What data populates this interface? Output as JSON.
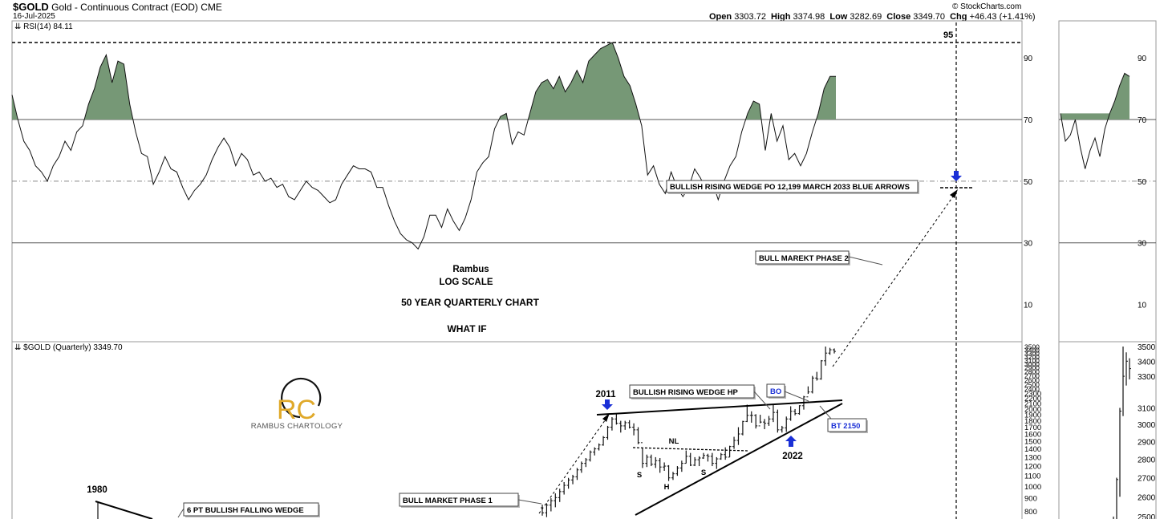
{
  "header": {
    "symbol": "$GOLD",
    "name": "Gold - Continuous Contract (EOD)",
    "exchange": "CME",
    "date": "16-Jul-2025",
    "open_label": "Open",
    "open": "3303.72",
    "high_label": "High",
    "high": "3374.98",
    "low_label": "Low",
    "low": "3282.69",
    "close_label": "Close",
    "close": "3349.70",
    "chg_label": "Chg",
    "chg": "+46.43 (+1.41%)",
    "source": "© StockCharts.com"
  },
  "chart_data": [
    {
      "type": "line",
      "panel": "rsi",
      "indicator_label": "RSI(14) 84.11",
      "ylim": [
        0,
        100
      ],
      "ticks": [
        10,
        30,
        50,
        70,
        90
      ],
      "reference_lines": {
        "overbought": 70,
        "midline": 50,
        "oversold": 30,
        "extreme": 95
      },
      "extreme_label": "95",
      "fill_above": 70,
      "fill_color": "#769876",
      "values": [
        78,
        70,
        63,
        60,
        55,
        53,
        50,
        55,
        58,
        63,
        60,
        66,
        68,
        75,
        80,
        87,
        91,
        82,
        89,
        88,
        75,
        66,
        59,
        58,
        49,
        53,
        58,
        54,
        53,
        48,
        44,
        47,
        49,
        52,
        57,
        61,
        64,
        61,
        55,
        59,
        57,
        52,
        53,
        50,
        51,
        48,
        49,
        45,
        44,
        47,
        50,
        48,
        47,
        45,
        43,
        44,
        49,
        52,
        55,
        54,
        54,
        53,
        48,
        48,
        42,
        37,
        33,
        31,
        30,
        28,
        32,
        39,
        39,
        35,
        41,
        37,
        34,
        38,
        44,
        53,
        56,
        58,
        67,
        71,
        72,
        62,
        66,
        65,
        72,
        79,
        82,
        83,
        80,
        84,
        79,
        82,
        86,
        82,
        89,
        91,
        93,
        94,
        95,
        90,
        84,
        81,
        75,
        68,
        52,
        55,
        49,
        46,
        53,
        48,
        45,
        48,
        54,
        51,
        47,
        50,
        44,
        50,
        55,
        58,
        66,
        72,
        76,
        75,
        60,
        72,
        63,
        68,
        57,
        59,
        55,
        59,
        66,
        72,
        80,
        84,
        84
      ],
      "inset_values": [
        72,
        63,
        65,
        70,
        61,
        54,
        60,
        64,
        58,
        67,
        72,
        76,
        81,
        85,
        84
      ]
    },
    {
      "type": "line",
      "panel": "price",
      "scale": "log",
      "series_label": "$GOLD (Quarterly) 3349.70",
      "ylim": [
        700,
        3550
      ],
      "ticks": [
        3500,
        3400,
        3300,
        3200,
        3100,
        3000,
        2900,
        2800,
        2700,
        2600,
        2500,
        2400,
        2300,
        2200,
        2100,
        2000,
        1900,
        1800,
        1700,
        1600,
        1500,
        1400,
        1300,
        1200,
        1100,
        1000,
        900,
        800
      ],
      "inset_ticks": [
        3500,
        3400,
        3300,
        3100,
        3000,
        2900,
        2800,
        2700,
        2600,
        2500
      ],
      "bars": [
        [
          826,
          850,
          770,
          790
        ],
        [
          790,
          860,
          760,
          846
        ],
        [
          846,
          900,
          800,
          880
        ],
        [
          880,
          940,
          830,
          905
        ],
        [
          905,
          980,
          870,
          955
        ],
        [
          955,
          1040,
          930,
          1010
        ],
        [
          1010,
          1080,
          980,
          1060
        ],
        [
          1060,
          1110,
          1020,
          1090
        ],
        [
          1090,
          1180,
          1060,
          1160
        ],
        [
          1160,
          1250,
          1130,
          1230
        ],
        [
          1230,
          1290,
          1190,
          1270
        ],
        [
          1270,
          1380,
          1250,
          1360
        ],
        [
          1360,
          1420,
          1320,
          1400
        ],
        [
          1400,
          1470,
          1380,
          1450
        ],
        [
          1450,
          1570,
          1440,
          1550
        ],
        [
          1550,
          1720,
          1520,
          1700
        ],
        [
          1700,
          1860,
          1650,
          1830
        ],
        [
          1830,
          1920,
          1740,
          1760
        ],
        [
          1760,
          1800,
          1620,
          1720
        ],
        [
          1720,
          1800,
          1660,
          1770
        ],
        [
          1770,
          1810,
          1680,
          1700
        ],
        [
          1700,
          1760,
          1580,
          1660
        ],
        [
          1660,
          1700,
          1460,
          1480
        ],
        [
          1480,
          1410,
          1180,
          1230
        ],
        [
          1230,
          1330,
          1190,
          1300
        ],
        [
          1300,
          1330,
          1200,
          1220
        ],
        [
          1220,
          1300,
          1180,
          1260
        ],
        [
          1260,
          1290,
          1130,
          1190
        ],
        [
          1190,
          1240,
          1150,
          1200
        ],
        [
          1200,
          1210,
          1050,
          1080
        ],
        [
          1080,
          1140,
          1060,
          1120
        ],
        [
          1120,
          1200,
          1100,
          1180
        ],
        [
          1180,
          1260,
          1140,
          1230
        ],
        [
          1230,
          1380,
          1230,
          1310
        ],
        [
          1310,
          1350,
          1200,
          1210
        ],
        [
          1210,
          1300,
          1200,
          1270
        ],
        [
          1270,
          1310,
          1200,
          1290
        ],
        [
          1290,
          1350,
          1280,
          1320
        ],
        [
          1320,
          1340,
          1250,
          1310
        ],
        [
          1310,
          1350,
          1200,
          1230
        ],
        [
          1230,
          1300,
          1170,
          1280
        ],
        [
          1280,
          1350,
          1270,
          1330
        ],
        [
          1330,
          1420,
          1270,
          1300
        ],
        [
          1300,
          1440,
          1300,
          1430
        ],
        [
          1430,
          1560,
          1400,
          1510
        ],
        [
          1510,
          1700,
          1450,
          1600
        ],
        [
          1600,
          1800,
          1580,
          1790
        ],
        [
          1790,
          2080,
          1780,
          1890
        ],
        [
          1890,
          1960,
          1770,
          1890
        ],
        [
          1890,
          1910,
          1680,
          1720
        ],
        [
          1720,
          1900,
          1760,
          1780
        ],
        [
          1780,
          1830,
          1670,
          1760
        ],
        [
          1760,
          1880,
          1720,
          1830
        ],
        [
          1830,
          2080,
          1780,
          1940
        ],
        [
          1940,
          1990,
          1620,
          1660
        ],
        [
          1660,
          1720,
          1620,
          1690
        ],
        [
          1690,
          1870,
          1630,
          1830
        ],
        [
          1830,
          2050,
          1800,
          1960
        ],
        [
          1960,
          2000,
          1890,
          1920
        ],
        [
          1920,
          2070,
          1900,
          2060
        ],
        [
          2060,
          2250,
          1990,
          2230
        ],
        [
          2230,
          2450,
          2290,
          2330
        ],
        [
          2330,
          2690,
          2300,
          2640
        ],
        [
          2640,
          2790,
          2580,
          2620
        ],
        [
          2620,
          3100,
          2600,
          3080
        ],
        [
          3080,
          3500,
          2950,
          3300
        ],
        [
          3300,
          3460,
          3250,
          3400
        ],
        [
          3400,
          3440,
          3290,
          3350
        ]
      ],
      "inset_bars": [
        [
          2470,
          2500,
          2400,
          2450
        ],
        [
          2440,
          2700,
          2440,
          2690
        ],
        [
          2690,
          3100,
          2600,
          3080
        ],
        [
          3080,
          3500,
          3050,
          3300
        ],
        [
          3300,
          3460,
          3240,
          3400
        ],
        [
          3400,
          3420,
          3280,
          3350
        ]
      ],
      "annotations": {
        "rambus": "Rambus",
        "log_scale": "LOG SCALE",
        "fifty_year": "50 YEAR QUARTERLY CHART",
        "what_if": "WHAT IF",
        "wedge_po": "BULLISH RISING WEDGE PO 12,199  MARCH 2033 BLUE ARROWS",
        "bull_phase_2": "BULL MAREKT PHASE 2",
        "bull_phase_1": "BULL MARKET PHASE 1",
        "rising_wedge_hp": "BULLISH RISING WEDGE HP",
        "bo": "BO",
        "bt": "BT 2150",
        "falling_wedge": "6 PT BULLISH FALLING WEDGE",
        "year_2011": "2011",
        "year_2022": "2022",
        "year_1980": "1980",
        "nl": "NL",
        "s_left": "S",
        "head": "H",
        "s_right": "S"
      },
      "logo": {
        "monogram": "RC",
        "text": "RAMBUS CHARTOLOGY",
        "color": "#e0a92a"
      },
      "arrow_color": "#1a2fd6"
    }
  ]
}
